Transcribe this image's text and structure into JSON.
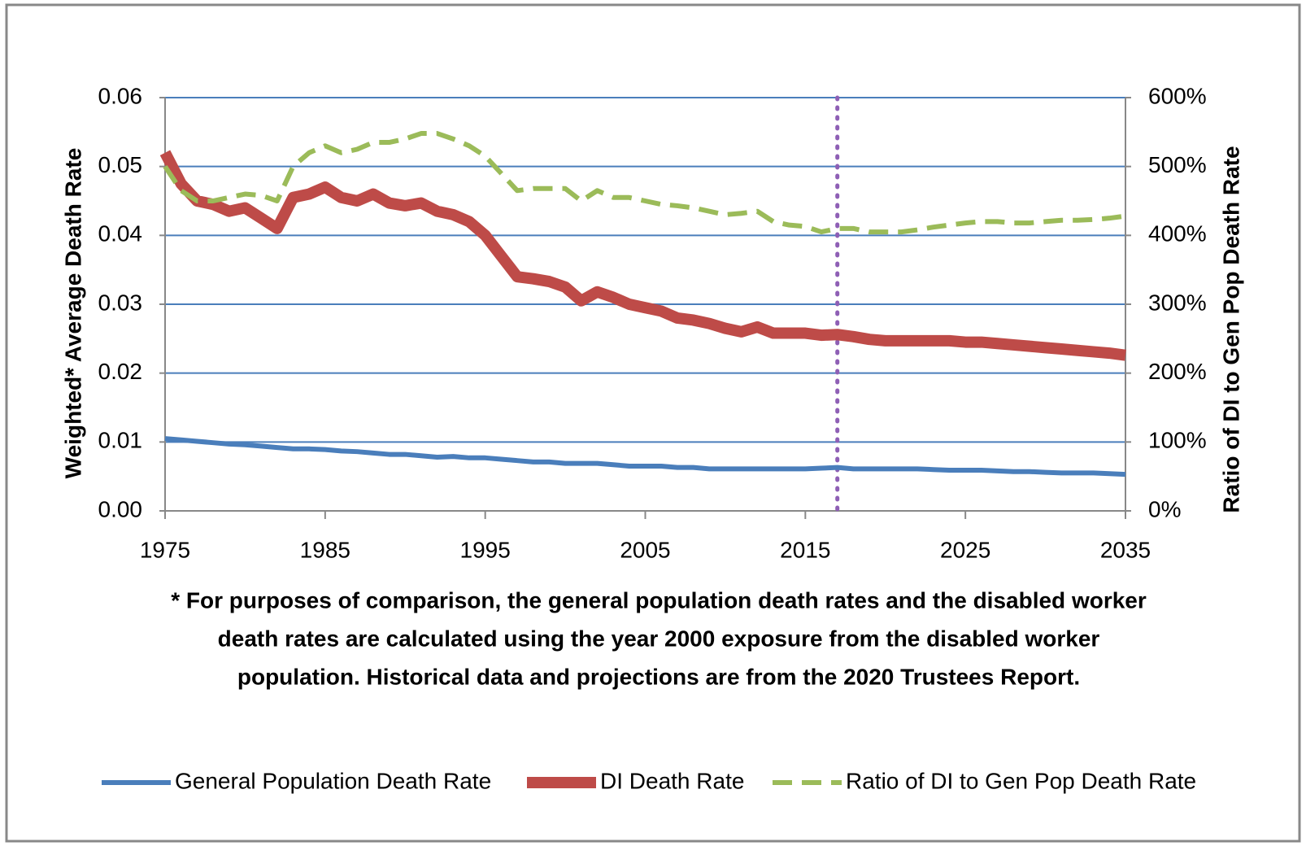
{
  "chart_data": {
    "type": "line",
    "y_label": "Weighted* Average Death Rate",
    "y2_label": "Ratio of DI to Gen Pop Death Rate",
    "notes": [
      "* For purposes of comparison, the general population death rates and the disabled worker",
      "death rates are calculated using the year 2000 exposure from the disabled worker",
      "population. Historical data and projections are from the 2020 Trustees Report."
    ],
    "x": [
      1975,
      1976,
      1977,
      1978,
      1979,
      1980,
      1981,
      1982,
      1983,
      1984,
      1985,
      1986,
      1987,
      1988,
      1989,
      1990,
      1991,
      1992,
      1993,
      1994,
      1995,
      1996,
      1997,
      1998,
      1999,
      2000,
      2001,
      2002,
      2003,
      2004,
      2005,
      2006,
      2007,
      2008,
      2009,
      2010,
      2011,
      2012,
      2013,
      2014,
      2015,
      2016,
      2017,
      2018,
      2019,
      2020,
      2021,
      2022,
      2023,
      2024,
      2025,
      2026,
      2027,
      2028,
      2029,
      2030,
      2031,
      2032,
      2033,
      2034,
      2035
    ],
    "xlim": [
      1975,
      2035
    ],
    "xticks": [
      1975,
      1985,
      1995,
      2005,
      2015,
      2025,
      2035
    ],
    "ylim": [
      0,
      0.06
    ],
    "yticks": [
      {
        "value": 0,
        "label": "0.00"
      },
      0.01,
      0.02,
      0.03,
      0.04,
      0.05,
      0.06
    ],
    "y2lim": [
      0,
      600
    ],
    "y2ticks": [
      {
        "value": 0,
        "label": "0%"
      },
      {
        "value": 100,
        "label": "100%"
      },
      {
        "value": 200,
        "label": "200%"
      },
      {
        "value": 300,
        "label": "300%"
      },
      {
        "value": 400,
        "label": "400%"
      },
      {
        "value": 500,
        "label": "500%"
      },
      {
        "value": 600,
        "label": "600%"
      }
    ],
    "grid": true,
    "vline": 2017,
    "vline_color": "#8e5fb5",
    "legend": "bottom",
    "series": [
      {
        "name": "General Population Death Rate",
        "color": "#4a7ebb",
        "width": 6,
        "dash": false,
        "values": [
          0.0105,
          0.0103,
          0.0101,
          0.0099,
          0.0097,
          0.0096,
          0.0094,
          0.0092,
          0.009,
          0.009,
          0.0089,
          0.0087,
          0.0086,
          0.0084,
          0.0082,
          0.0082,
          0.008,
          0.0078,
          0.0079,
          0.0077,
          0.0077,
          0.0075,
          0.0073,
          0.0071,
          0.0071,
          0.0069,
          0.0069,
          0.0069,
          0.0067,
          0.0065,
          0.0065,
          0.0065,
          0.0063,
          0.0063,
          0.0061,
          0.0061,
          0.0061,
          0.0061,
          0.0061,
          0.0061,
          0.0061,
          0.0062,
          0.0063,
          0.0061,
          0.0061,
          0.0061,
          0.0061,
          0.0061,
          0.006,
          0.0059,
          0.0059,
          0.0059,
          0.0058,
          0.0057,
          0.0057,
          0.0056,
          0.0055,
          0.0055,
          0.0055,
          0.0054,
          0.0053
        ]
      },
      {
        "name": "DI Death Rate",
        "color": "#be4b48",
        "width": 14,
        "dash": false,
        "values": [
          0.052,
          0.0475,
          0.045,
          0.0445,
          0.0435,
          0.044,
          0.0425,
          0.041,
          0.0455,
          0.046,
          0.047,
          0.0455,
          0.045,
          0.046,
          0.0447,
          0.0443,
          0.0447,
          0.0435,
          0.043,
          0.042,
          0.04,
          0.037,
          0.034,
          0.0337,
          0.0333,
          0.0325,
          0.0305,
          0.0318,
          0.031,
          0.03,
          0.0295,
          0.029,
          0.028,
          0.0277,
          0.0272,
          0.0265,
          0.026,
          0.0267,
          0.0258,
          0.0258,
          0.0258,
          0.0255,
          0.0256,
          0.0253,
          0.0249,
          0.0247,
          0.0247,
          0.0247,
          0.0247,
          0.0247,
          0.0245,
          0.0245,
          0.0243,
          0.0241,
          0.0239,
          0.0237,
          0.0235,
          0.0233,
          0.0231,
          0.0229,
          0.0226
        ]
      },
      {
        "name": "Ratio of DI to Gen Pop Death Rate",
        "color": "#9bbb59",
        "width": 6,
        "dash": true,
        "axis": "y2",
        "values": [
          500,
          465,
          450,
          450,
          455,
          460,
          458,
          450,
          500,
          520,
          530,
          520,
          525,
          535,
          535,
          540,
          548,
          548,
          540,
          530,
          515,
          490,
          465,
          468,
          468,
          468,
          450,
          465,
          455,
          455,
          450,
          445,
          443,
          440,
          435,
          430,
          432,
          435,
          420,
          415,
          413,
          405,
          410,
          410,
          405,
          405,
          405,
          408,
          412,
          415,
          418,
          420,
          420,
          418,
          418,
          420,
          422,
          422,
          423,
          425,
          428
        ]
      }
    ]
  }
}
